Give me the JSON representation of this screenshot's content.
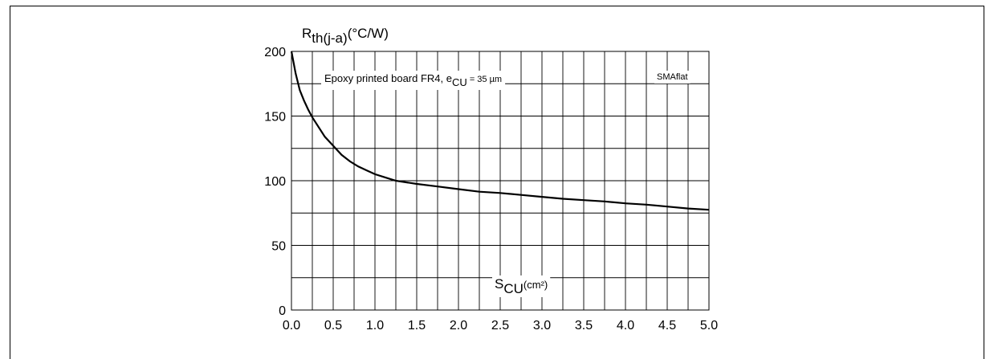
{
  "chart_data": {
    "type": "line",
    "ylabel": {
      "base": "R",
      "sub": "th(j-a)",
      "unit": "(°C/W)"
    },
    "xlabel": {
      "base": "S",
      "sub": "CU",
      "unit": "(cm²)"
    },
    "annotation": {
      "text": "Epoxy printed board FR4, e",
      "sub": "CU",
      "value": " = 35 µm"
    },
    "package_label": "SMAflat",
    "xlim": [
      0,
      5
    ],
    "ylim": [
      0,
      200
    ],
    "x_ticks": [
      "0.0",
      "0.5",
      "1.0",
      "1.5",
      "2.0",
      "2.5",
      "3.0",
      "3.5",
      "4.0",
      "4.5",
      "5.0"
    ],
    "y_ticks": [
      "0",
      "50",
      "100",
      "150",
      "200"
    ],
    "grid": true,
    "x_grid_step": 0.25,
    "y_grid_step": 25,
    "series": [
      {
        "x": [
          0,
          0.05,
          0.1,
          0.15,
          0.2,
          0.25,
          0.3,
          0.4,
          0.5,
          0.6,
          0.7,
          0.8,
          0.9,
          1.0,
          1.1,
          1.25,
          1.5,
          1.75,
          2.0,
          2.25,
          2.5,
          2.75,
          3.0,
          3.25,
          3.5,
          3.75,
          4.0,
          4.25,
          4.5,
          4.75,
          5.0
        ],
        "y": [
          200,
          183,
          170,
          162,
          155,
          149,
          144,
          134,
          127,
          120,
          115,
          111,
          108,
          105,
          103,
          100,
          97.5,
          95.5,
          93.5,
          91.5,
          90.5,
          89,
          87.5,
          86,
          85,
          84,
          82.5,
          81.5,
          80,
          78.5,
          77.5
        ]
      }
    ]
  }
}
